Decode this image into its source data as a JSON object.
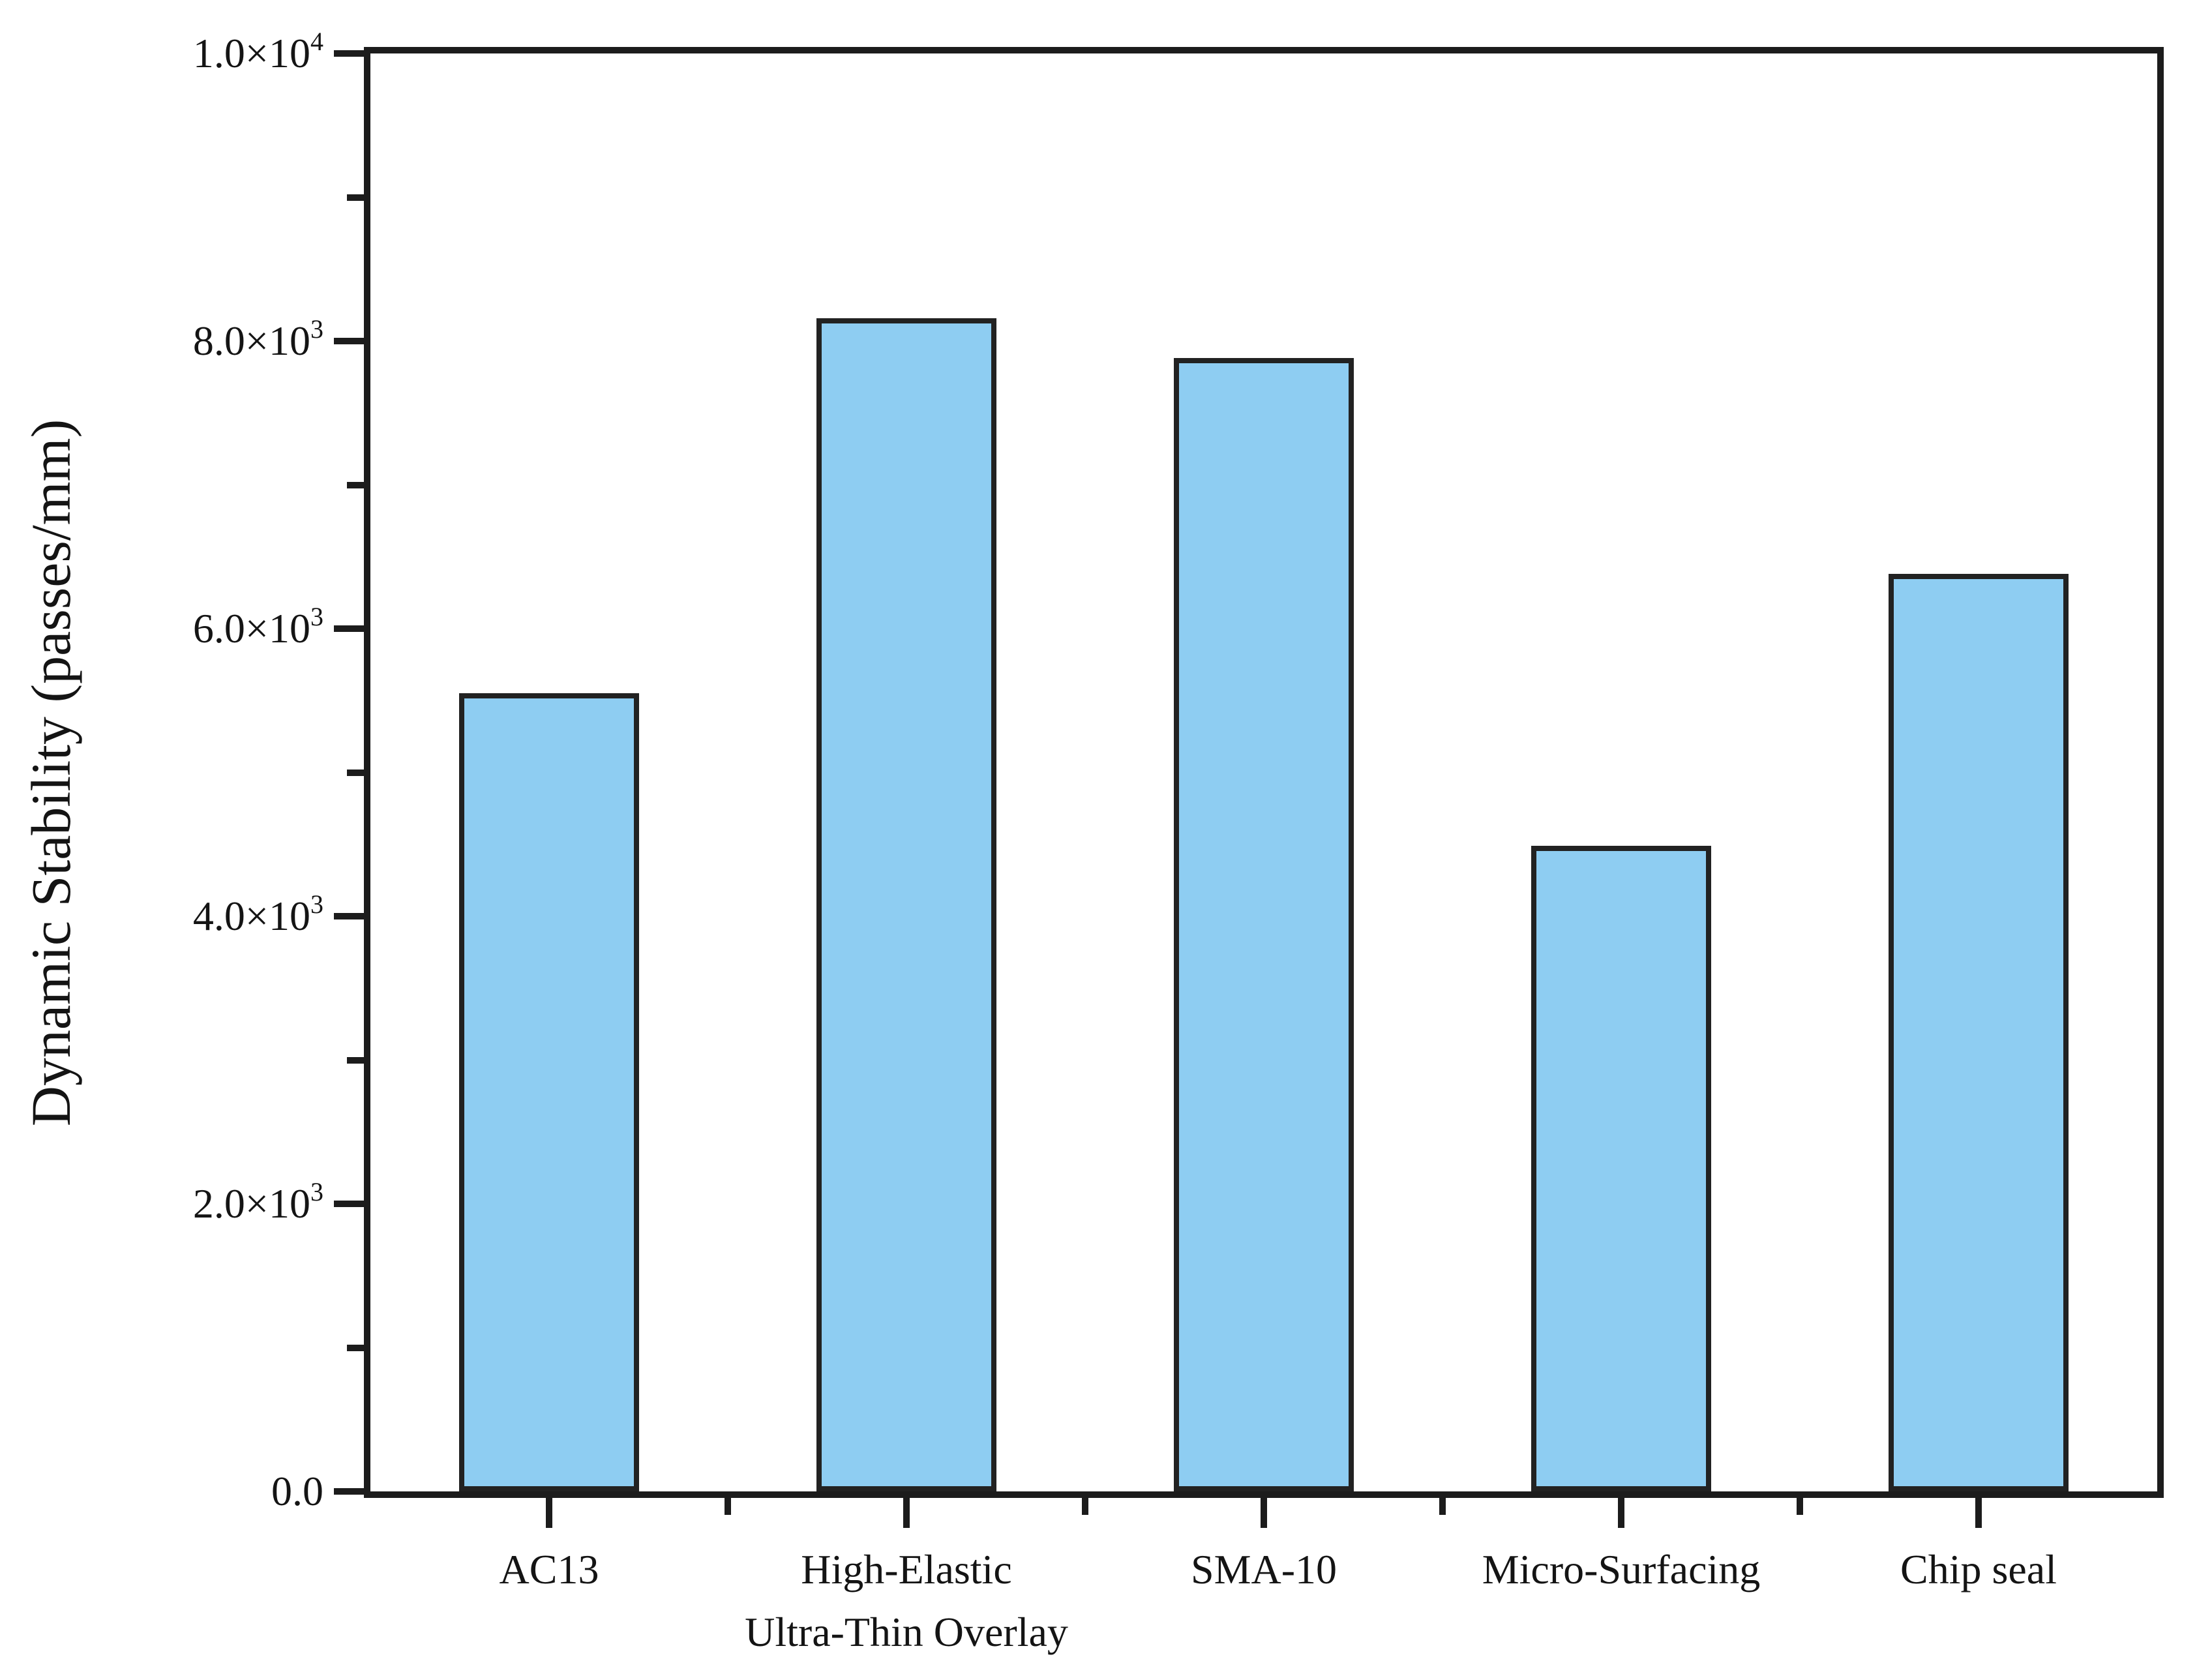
{
  "chart_data": {
    "type": "bar",
    "title": "",
    "xlabel": "",
    "ylabel": "Dynamic Stability (passes/mm)",
    "categories": [
      "AC13",
      "High-Elastic\nUltra-Thin Overlay",
      "SMA-10",
      "Micro-Surfacing",
      "Chip seal"
    ],
    "values": [
      5550,
      8160,
      7880,
      4490,
      6380
    ],
    "ylim": [
      0,
      10000
    ],
    "y_major_ticks": [
      {
        "value": 0,
        "label": "0.0"
      },
      {
        "value": 2000,
        "label": "2.0×10^3"
      },
      {
        "value": 4000,
        "label": "4.0×10^3"
      },
      {
        "value": 6000,
        "label": "6.0×10^3"
      },
      {
        "value": 8000,
        "label": "8.0×10^3"
      },
      {
        "value": 10000,
        "label": "1.0×10^4"
      }
    ],
    "y_minor_ticks": [
      1000,
      3000,
      5000,
      7000,
      9000
    ],
    "grid": false,
    "legend": null,
    "bar_fill_color": "#8ECDF2",
    "bar_border_color": "#222222",
    "axis_color": "#1c1c1c"
  }
}
